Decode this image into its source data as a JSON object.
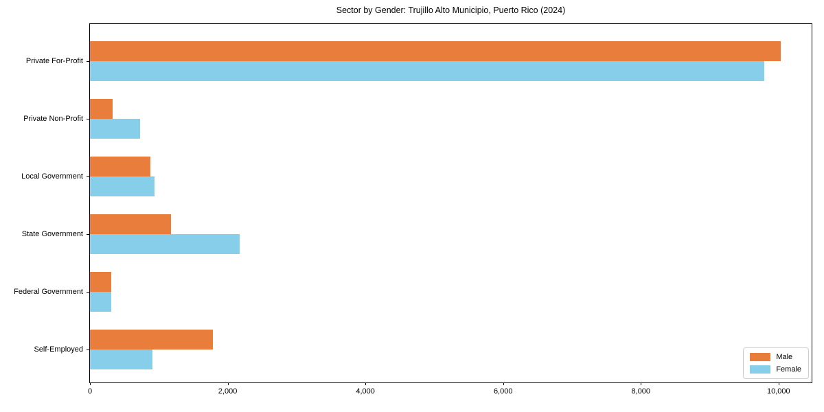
{
  "chart_title": "Sector by Gender: Trujillo Alto Municipio, Puerto Rico (2024)",
  "chart_data": {
    "type": "bar",
    "orientation": "horizontal",
    "title": "Sector by Gender: Trujillo Alto Municipio, Puerto Rico (2024)",
    "xlabel": "",
    "ylabel": "",
    "categories": [
      "Private For-Profit",
      "Private Non-Profit",
      "Local Government",
      "State Government",
      "Federal Government",
      "Self-Employed"
    ],
    "series": [
      {
        "name": "Male",
        "color": "#E87D3C",
        "values": [
          10030,
          330,
          880,
          1180,
          310,
          1780
        ]
      },
      {
        "name": "Female",
        "color": "#87CEEB",
        "values": [
          9790,
          730,
          940,
          2170,
          305,
          910
        ]
      }
    ],
    "xlim": [
      0,
      10500
    ],
    "xticks": [
      0,
      2000,
      4000,
      6000,
      8000,
      10000
    ],
    "xtick_labels": [
      "0",
      "2,000",
      "4,000",
      "6,000",
      "8,000",
      "10,000"
    ],
    "grid": false,
    "legend_position": "lower right"
  }
}
